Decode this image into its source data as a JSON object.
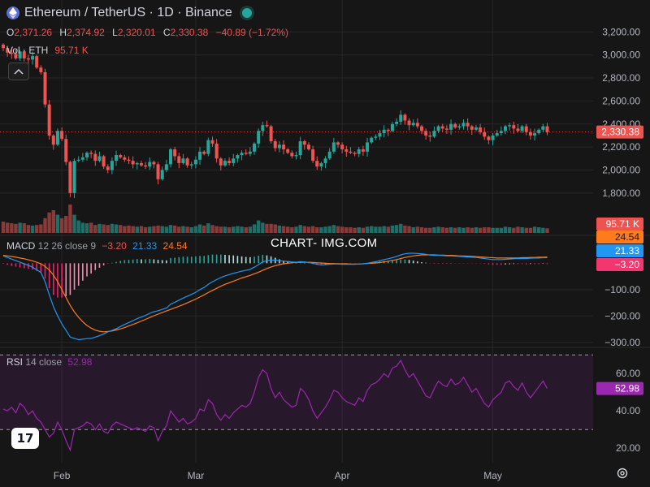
{
  "header": {
    "title": "Ethereum / TetherUS · 1D · Binance",
    "ohlc": [
      {
        "key": "O",
        "value": "2,371.26"
      },
      {
        "key": "H",
        "value": "2,374.92"
      },
      {
        "key": "L",
        "value": "2,320.01"
      },
      {
        "key": "C",
        "value": "2,330.38"
      },
      {
        "key": "",
        "value": "−40.89 (−1.72%)"
      }
    ],
    "volume_label": "Vol · ETH",
    "volume_value": "95.71 K"
  },
  "macd_legend": {
    "label": "MACD",
    "params": "12 26 close 9",
    "hist": "−3.20",
    "macd": "21.33",
    "signal": "24.54"
  },
  "rsi_legend": {
    "label": "RSI",
    "params": "14 close",
    "value": "52.98"
  },
  "watermark": "CHART- IMG.COM",
  "logo_text": "17",
  "icons": {
    "asset": "ethereum-icon",
    "status": "live-dot-icon",
    "collapse": "chevron-up-icon",
    "settings": "gear-icon"
  },
  "colors": {
    "up": "#26a69a",
    "down": "#ef5350",
    "macd": "#2196f3",
    "signal": "#ff7b1c",
    "rsi": "#9c27b0",
    "price_line": "#ef5350"
  },
  "chart_data": [
    {
      "type": "candlestick",
      "title": "Ethereum / TetherUS · 1D · Binance",
      "x_tick_labels": [
        "Feb",
        "Mar",
        "Apr",
        "May"
      ],
      "y_tick_labels": [
        "3,200.00",
        "3,000.00",
        "2,800.00",
        "2,600.00",
        "2,400.00",
        "2,200.00",
        "2,000.00",
        "1,800.00"
      ],
      "ylim": [
        1700,
        3280
      ],
      "last_price_label": "2,330.38",
      "last_price": 2330.38,
      "closes": [
        3060,
        3020,
        3010,
        2970,
        3030,
        2970,
        2960,
        2990,
        2890,
        2850,
        2570,
        2300,
        2220,
        2340,
        2270,
        2070,
        1800,
        2080,
        2090,
        2110,
        2150,
        2140,
        2080,
        2120,
        2030,
        2000,
        2080,
        2130,
        2110,
        2090,
        2080,
        2050,
        2060,
        2040,
        2030,
        2070,
        2050,
        1920,
        2000,
        2050,
        2180,
        2120,
        2060,
        2100,
        2040,
        2050,
        2090,
        2160,
        2140,
        2260,
        2230,
        2100,
        2040,
        2080,
        2060,
        2100,
        2130,
        2150,
        2140,
        2160,
        2230,
        2340,
        2390,
        2380,
        2250,
        2190,
        2220,
        2180,
        2150,
        2120,
        2130,
        2250,
        2220,
        2180,
        2080,
        2030,
        2060,
        2100,
        2160,
        2240,
        2220,
        2180,
        2160,
        2150,
        2140,
        2180,
        2160,
        2240,
        2280,
        2290,
        2320,
        2350,
        2340,
        2400,
        2420,
        2480,
        2430,
        2390,
        2410,
        2380,
        2340,
        2300,
        2290,
        2340,
        2380,
        2360,
        2350,
        2400,
        2370,
        2380,
        2410,
        2380,
        2350,
        2370,
        2330,
        2290,
        2260,
        2300,
        2320,
        2340,
        2380,
        2390,
        2360,
        2340,
        2380,
        2330,
        2300,
        2320,
        2350,
        2380,
        2330
      ],
      "volume_label": "95.71 K",
      "volumes": [
        1.0,
        0.9,
        0.85,
        0.8,
        0.9,
        0.85,
        0.7,
        0.65,
        0.7,
        0.75,
        1.3,
        1.8,
        2.0,
        1.6,
        1.3,
        1.5,
        2.5,
        1.6,
        1.1,
        0.9,
        0.85,
        0.9,
        0.7,
        0.8,
        0.75,
        0.7,
        0.8,
        0.75,
        0.7,
        0.6,
        0.65,
        0.6,
        0.55,
        0.6,
        0.5,
        0.55,
        0.6,
        0.65,
        0.6,
        0.55,
        0.7,
        0.65,
        0.55,
        0.6,
        0.55,
        0.5,
        0.6,
        0.75,
        0.65,
        0.85,
        0.7,
        0.6,
        0.55,
        0.55,
        0.5,
        0.55,
        0.6,
        0.55,
        0.5,
        0.55,
        0.75,
        1.1,
        0.9,
        0.8,
        0.8,
        0.75,
        0.65,
        0.6,
        0.55,
        0.5,
        0.55,
        0.7,
        0.6,
        0.55,
        0.6,
        0.5,
        0.5,
        0.55,
        0.6,
        0.7,
        0.6,
        0.55,
        0.5,
        0.5,
        0.45,
        0.5,
        0.45,
        0.55,
        0.6,
        0.55,
        0.55,
        0.6,
        0.55,
        0.65,
        0.7,
        0.8,
        0.65,
        0.6,
        0.5,
        0.55,
        0.5,
        0.45,
        0.45,
        0.5,
        0.55,
        0.5,
        0.45,
        0.5,
        0.45,
        0.5,
        0.45,
        0.5,
        0.45,
        0.5,
        0.45,
        0.5,
        0.5,
        0.45,
        0.45,
        0.45,
        0.55,
        0.5,
        0.45,
        0.55,
        0.5,
        0.45,
        0.45,
        0.55,
        0.5,
        0.45,
        0.4
      ]
    },
    {
      "type": "line",
      "title": "MACD 12 26 close 9",
      "y_tick_labels": [
        "−100.00",
        "−200.00",
        "−300.00"
      ],
      "ylim": [
        -310,
        75
      ],
      "series": [
        {
          "name": "MACD",
          "values": [
            28,
            22,
            16,
            10,
            4,
            -2,
            -8,
            -15,
            -25,
            -35,
            -70,
            -120,
            -165,
            -200,
            -230,
            -255,
            -280,
            -285,
            -290,
            -288,
            -286,
            -285,
            -280,
            -275,
            -268,
            -260,
            -255,
            -248,
            -240,
            -232,
            -225,
            -218,
            -210,
            -204,
            -198,
            -190,
            -184,
            -180,
            -175,
            -170,
            -155,
            -148,
            -140,
            -132,
            -125,
            -118,
            -110,
            -100,
            -92,
            -80,
            -70,
            -62,
            -54,
            -48,
            -43,
            -38,
            -34,
            -30,
            -27,
            -23,
            -15,
            -5,
            5,
            10,
            12,
            12,
            10,
            8,
            7,
            5,
            4,
            6,
            5,
            3,
            0,
            -4,
            -6,
            -5,
            -4,
            -3,
            -3,
            -4,
            -4,
            -4,
            -4,
            -3,
            -2,
            0,
            3,
            6,
            10,
            14,
            17,
            21,
            26,
            32,
            36,
            38,
            38,
            37,
            36,
            34,
            31,
            30,
            30,
            29,
            28,
            28,
            27,
            26,
            25,
            24,
            23,
            22,
            20,
            18,
            16,
            14,
            14,
            14,
            15,
            16,
            17,
            18,
            18,
            18,
            19,
            20,
            20,
            21,
            21
          ]
        },
        {
          "name": "Signal",
          "values": [
            30,
            28,
            26,
            23,
            20,
            17,
            13,
            9,
            4,
            -2,
            -12,
            -25,
            -45,
            -70,
            -100,
            -130,
            -160,
            -185,
            -205,
            -222,
            -236,
            -246,
            -254,
            -258,
            -260,
            -259,
            -257,
            -253,
            -249,
            -244,
            -238,
            -232,
            -226,
            -219,
            -213,
            -206,
            -199,
            -193,
            -187,
            -181,
            -175,
            -169,
            -163,
            -157,
            -150,
            -143,
            -136,
            -128,
            -120,
            -111,
            -103,
            -95,
            -87,
            -80,
            -74,
            -68,
            -62,
            -56,
            -51,
            -46,
            -40,
            -34,
            -27,
            -20,
            -14,
            -9,
            -5,
            -2,
            0,
            2,
            3,
            4,
            4,
            4,
            3,
            2,
            1,
            0,
            -1,
            -1,
            -2,
            -2,
            -2,
            -3,
            -3,
            -3,
            -2,
            -1,
            0,
            1,
            3,
            5,
            8,
            11,
            14,
            18,
            22,
            25,
            28,
            30,
            32,
            32,
            32,
            32,
            31,
            31,
            30,
            30,
            29,
            28,
            28,
            27,
            26,
            25,
            24,
            23,
            22,
            21,
            20,
            20,
            20,
            20,
            20,
            20,
            21,
            21,
            22,
            22,
            23,
            23,
            24
          ]
        },
        {
          "name": "Histogram",
          "values": [
            -2,
            -6,
            -10,
            -13,
            -16,
            -19,
            -21,
            -24,
            -29,
            -33,
            -58,
            -95,
            -120,
            -130,
            -130,
            -125,
            -120,
            -100,
            -85,
            -66,
            -50,
            -39,
            -26,
            -17,
            -8,
            -1,
            2,
            5,
            9,
            12,
            13,
            14,
            16,
            15,
            15,
            16,
            15,
            13,
            12,
            11,
            20,
            21,
            23,
            25,
            25,
            25,
            26,
            28,
            28,
            31,
            33,
            33,
            33,
            32,
            31,
            30,
            28,
            26,
            24,
            23,
            25,
            29,
            32,
            30,
            26,
            21,
            15,
            10,
            7,
            3,
            1,
            2,
            1,
            -1,
            -3,
            -6,
            -7,
            -5,
            -3,
            -2,
            -1,
            -2,
            -2,
            -1,
            -1,
            0,
            0,
            1,
            3,
            5,
            7,
            9,
            9,
            10,
            12,
            14,
            14,
            13,
            10,
            7,
            4,
            2,
            -1,
            -2,
            -1,
            -2,
            -2,
            -1,
            -1,
            -1,
            -1,
            -1,
            -1,
            -1,
            -1,
            -2,
            -4,
            -6,
            -6,
            -6,
            -5,
            -4,
            -3,
            -3,
            -3,
            -4,
            -3,
            -3,
            -3,
            -2,
            -3
          ]
        }
      ]
    },
    {
      "type": "line",
      "title": "RSI 14 close",
      "y_tick_labels": [
        "60.00",
        "40.00",
        "20.00"
      ],
      "ylim": [
        14,
        74
      ],
      "band": [
        30,
        70
      ],
      "series": [
        {
          "name": "RSI",
          "values": [
            41,
            40,
            42,
            39,
            44,
            42,
            38,
            40,
            36,
            34,
            30,
            26,
            28,
            34,
            30,
            24,
            19,
            30,
            31,
            32,
            34,
            33,
            30,
            33,
            29,
            28,
            32,
            34,
            33,
            32,
            31,
            30,
            31,
            30,
            29,
            32,
            31,
            24,
            29,
            32,
            40,
            37,
            34,
            36,
            33,
            34,
            36,
            41,
            40,
            46,
            44,
            38,
            35,
            38,
            36,
            39,
            41,
            43,
            42,
            44,
            50,
            58,
            62,
            60,
            52,
            47,
            50,
            46,
            44,
            42,
            43,
            52,
            50,
            46,
            40,
            36,
            39,
            42,
            46,
            51,
            50,
            47,
            45,
            44,
            43,
            47,
            45,
            51,
            54,
            55,
            57,
            60,
            58,
            63,
            64,
            67,
            62,
            58,
            60,
            56,
            52,
            48,
            47,
            52,
            56,
            54,
            53,
            57,
            54,
            55,
            58,
            54,
            50,
            52,
            48,
            44,
            42,
            46,
            48,
            50,
            55,
            56,
            53,
            51,
            55,
            50,
            47,
            50,
            53,
            56,
            52
          ]
        }
      ]
    }
  ]
}
